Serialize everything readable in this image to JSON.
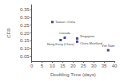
{
  "chart_data": {
    "type": "scatter",
    "xlabel": "Doubling Time (days)",
    "ylabel": "CFR",
    "x": [
      10,
      16,
      14,
      22,
      22,
      37
    ],
    "values": [
      0.27,
      0.17,
      0.155,
      0.165,
      0.145,
      0.09
    ],
    "annotations": [
      "Taiwan, China",
      "Canada",
      "Hong Kong (China)",
      "Singapore",
      "China Mainland",
      "Viet Nam"
    ],
    "color": "#1a1a6e",
    "marker": "square",
    "xlim": [
      0,
      40
    ],
    "xticks": [
      0,
      5,
      10,
      15,
      20,
      25,
      30,
      35,
      40
    ],
    "ylim": [
      0.02,
      0.38
    ],
    "yticks": [
      0.05,
      {
        "value": 0.1,
        "label": "0.10"
      },
      0.15,
      {
        "value": 0.2,
        "label": "0.20"
      },
      0.25,
      {
        "value": 0.3,
        "label": "0.30"
      },
      0.35
    ],
    "grid": false
  }
}
